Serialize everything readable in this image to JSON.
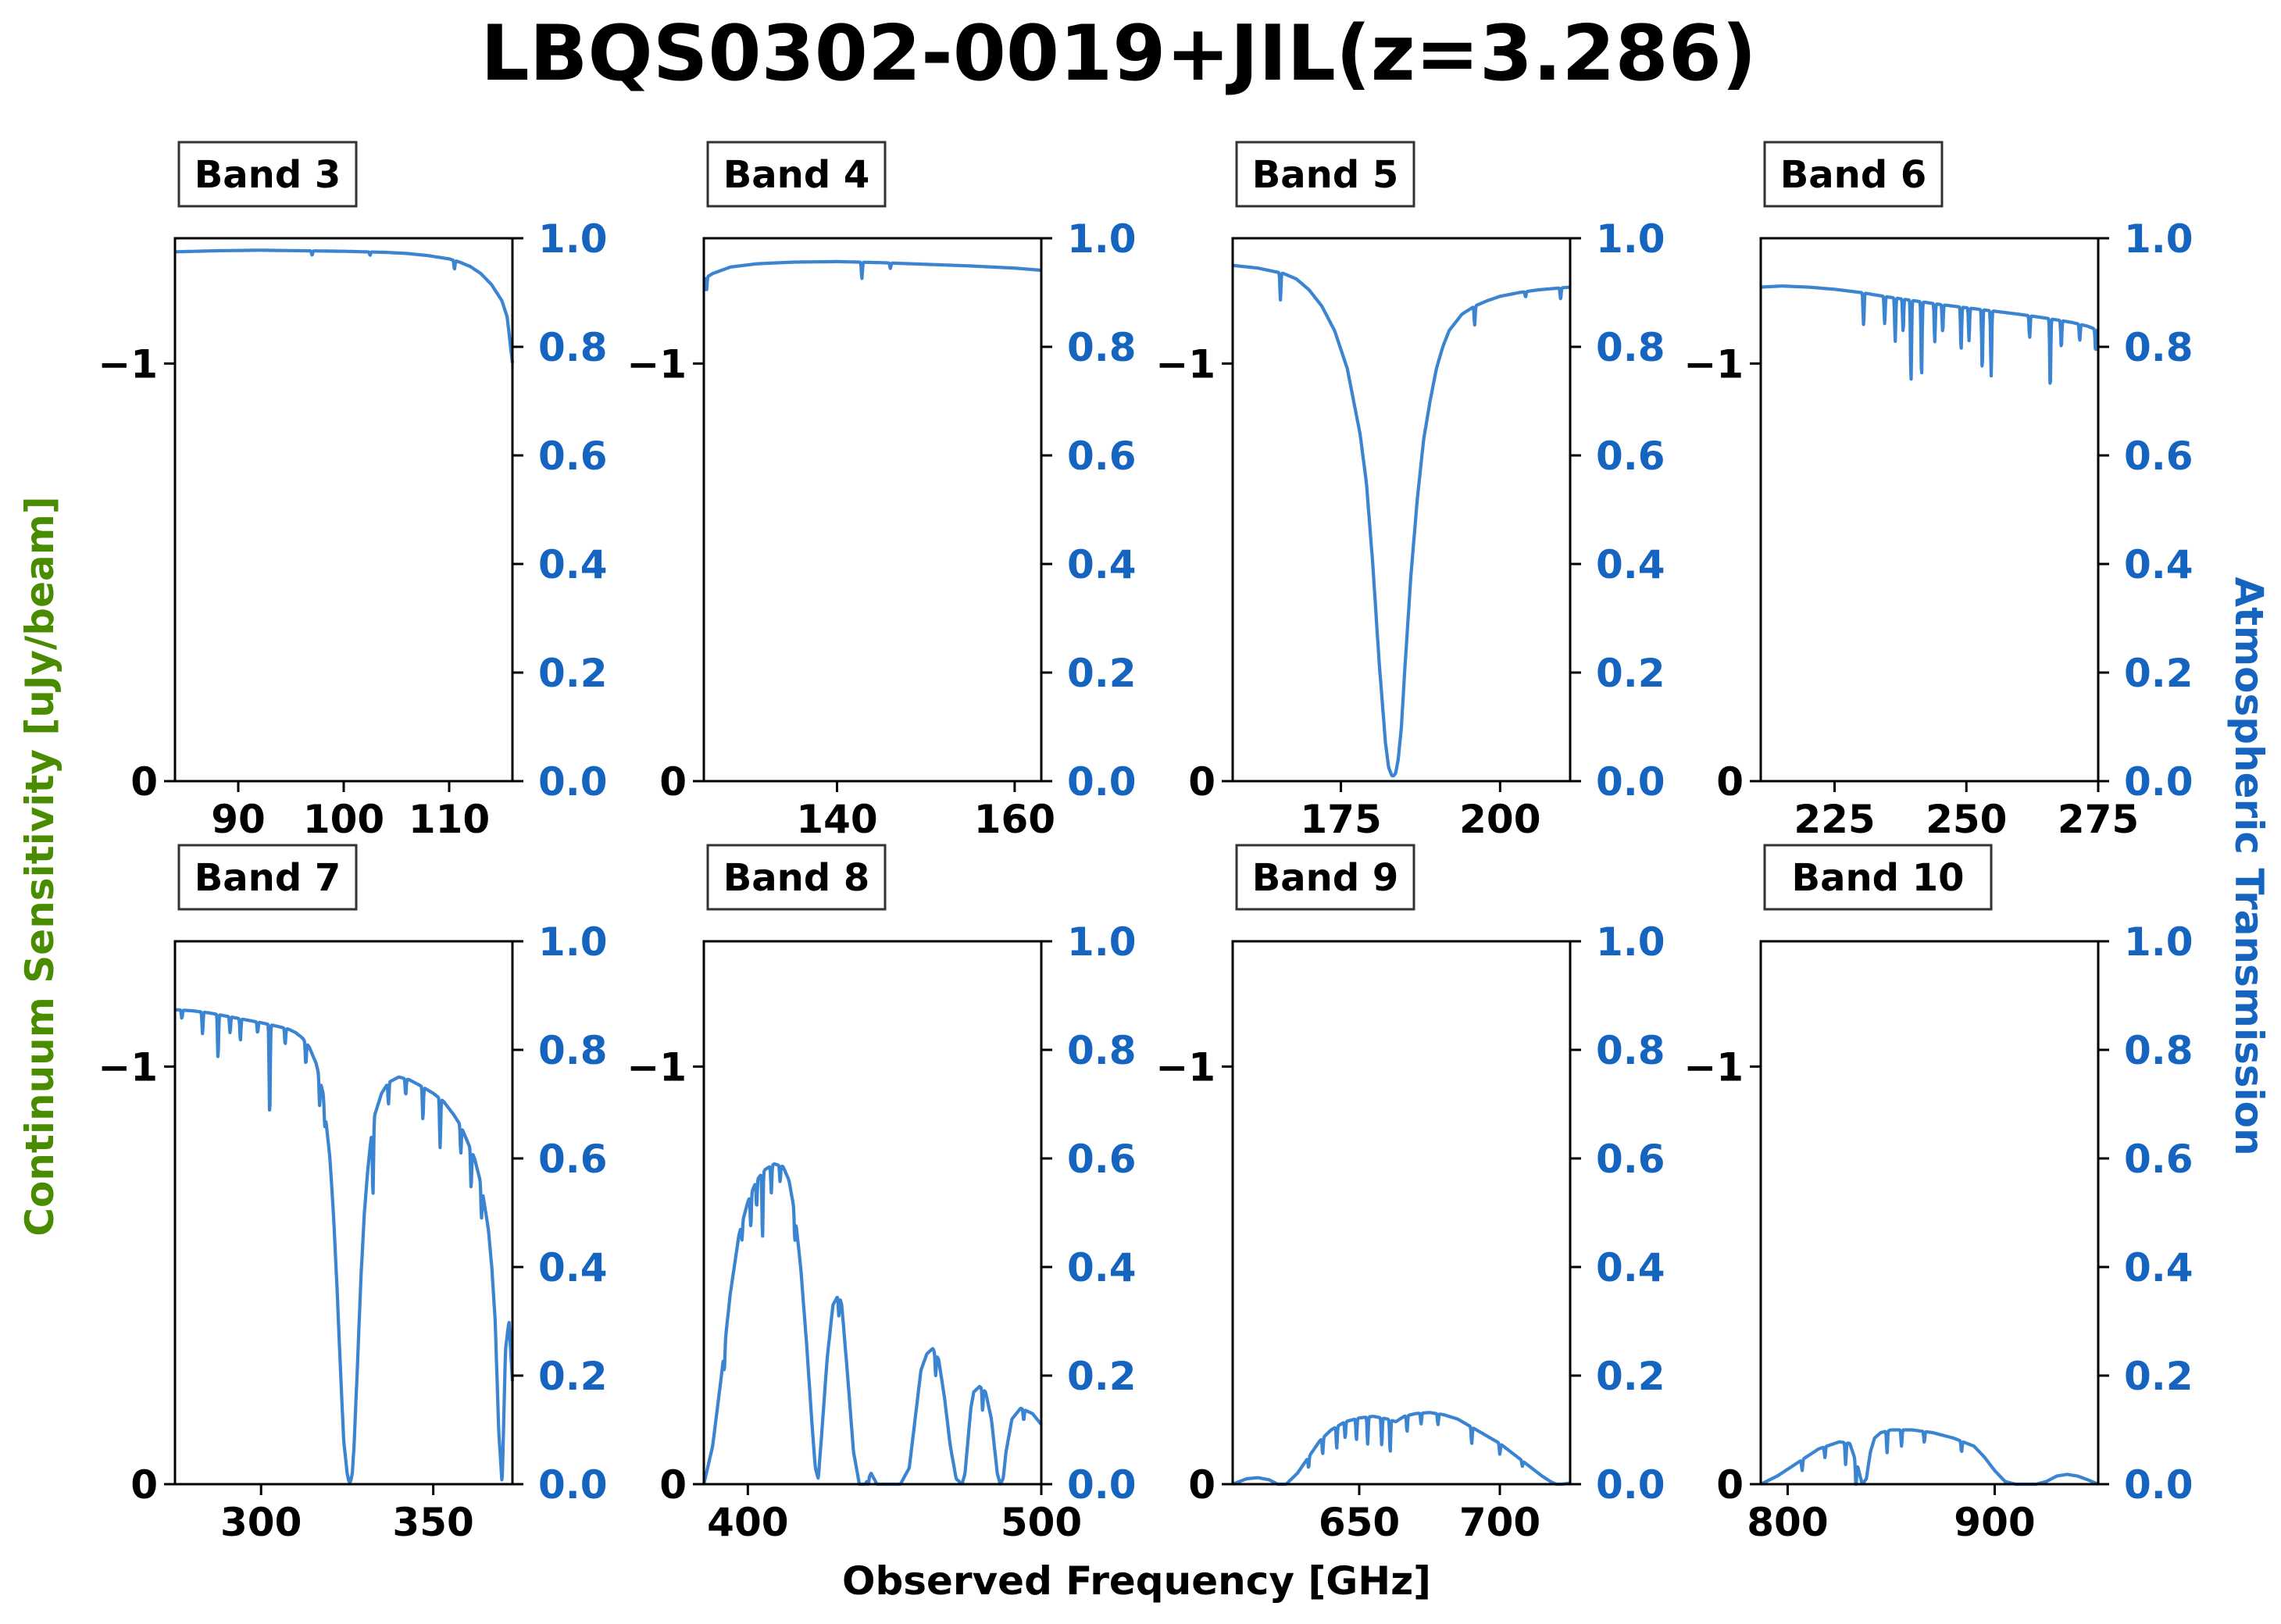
{
  "figure": {
    "title": "LBQS0302-0019+JIL(z=3.286)",
    "xlabel": "Observed Frequency [GHz]",
    "ylabel_left": "Continuum Sensitivity [uJy/beam]",
    "ylabel_right": "Atmospheric Transmission",
    "colors": {
      "transmission_line": "#3a84d2",
      "right_axis": "#1565c0",
      "left_label": "#4a8c00",
      "text": "#000000"
    }
  },
  "chart_data": [
    {
      "type": "line",
      "band": "Band 3",
      "xlim": [
        84,
        116
      ],
      "xticks": [
        90,
        100,
        110
      ],
      "ylim_left": [
        0,
        -1.3
      ],
      "yticks_left": [
        0,
        -1
      ],
      "ylim_right": [
        0,
        1
      ],
      "yticks_right": [
        0.0,
        0.2,
        0.4,
        0.6,
        0.8,
        1.0
      ],
      "series": [
        {
          "x": [
            84,
            88,
            92,
            96,
            100,
            104,
            106,
            108,
            110,
            111,
            112,
            113,
            114,
            115,
            115.5,
            116
          ],
          "y": [
            0.975,
            0.977,
            0.978,
            0.977,
            0.976,
            0.974,
            0.972,
            0.968,
            0.962,
            0.956,
            0.948,
            0.935,
            0.915,
            0.885,
            0.855,
            0.77
          ],
          "dips": [
            [
              97,
              0.008
            ],
            [
              102.5,
              0.006
            ],
            [
              110.5,
              0.016
            ]
          ]
        }
      ]
    },
    {
      "type": "line",
      "band": "Band 4",
      "xlim": [
        125,
        163
      ],
      "xticks": [
        140,
        160
      ],
      "ylim_left": [
        0,
        -1.3
      ],
      "yticks_left": [
        0,
        -1
      ],
      "ylim_right": [
        0,
        1
      ],
      "yticks_right": [
        0.0,
        0.2,
        0.4,
        0.6,
        0.8,
        1.0
      ],
      "series": [
        {
          "x": [
            125,
            126,
            128,
            131,
            135,
            140,
            145,
            150,
            155,
            160,
            163
          ],
          "y": [
            0.925,
            0.935,
            0.947,
            0.953,
            0.956,
            0.957,
            0.955,
            0.952,
            0.949,
            0.945,
            0.941
          ],
          "dips": [
            [
              125.3,
              0.025
            ],
            [
              142.8,
              0.03
            ],
            [
              146,
              0.01
            ]
          ]
        }
      ]
    },
    {
      "type": "line",
      "band": "Band 5",
      "xlim": [
        158,
        211
      ],
      "xticks": [
        175,
        200
      ],
      "ylim_left": [
        0,
        -1.3
      ],
      "yticks_left": [
        0,
        -1
      ],
      "ylim_right": [
        0,
        1
      ],
      "yticks_right": [
        0.0,
        0.2,
        0.4,
        0.6,
        0.8,
        1.0
      ],
      "series": [
        {
          "x": [
            158,
            162,
            166,
            168,
            170,
            172,
            174,
            176,
            178,
            179,
            180,
            181,
            182,
            182.5,
            183,
            183.3,
            183.6,
            184,
            184.5,
            185,
            186,
            187,
            188,
            189,
            190,
            191,
            192,
            194,
            196,
            198,
            200,
            203,
            206,
            209,
            211
          ],
          "y": [
            0.95,
            0.945,
            0.935,
            0.925,
            0.905,
            0.875,
            0.83,
            0.76,
            0.64,
            0.55,
            0.4,
            0.22,
            0.07,
            0.025,
            0.01,
            0.01,
            0.015,
            0.04,
            0.1,
            0.2,
            0.38,
            0.52,
            0.63,
            0.7,
            0.76,
            0.8,
            0.83,
            0.86,
            0.875,
            0.885,
            0.893,
            0.9,
            0.905,
            0.908,
            0.91
          ],
          "dips": [
            [
              165.5,
              0.05
            ],
            [
              196,
              0.035
            ],
            [
              204,
              0.01
            ],
            [
              209.5,
              0.02
            ]
          ]
        }
      ]
    },
    {
      "type": "line",
      "band": "Band 6",
      "xlim": [
        211,
        275
      ],
      "xticks": [
        225,
        250,
        275
      ],
      "ylim_left": [
        0,
        -1.3
      ],
      "yticks_left": [
        0,
        -1
      ],
      "ylim_right": [
        0,
        1
      ],
      "yticks_right": [
        0.0,
        0.2,
        0.4,
        0.6,
        0.8,
        1.0
      ],
      "series": [
        {
          "x": [
            211,
            215,
            220,
            225,
            230,
            235,
            240,
            245,
            250,
            255,
            260,
            265,
            270,
            273,
            275
          ],
          "y": [
            0.91,
            0.912,
            0.91,
            0.906,
            0.9,
            0.892,
            0.885,
            0.878,
            0.872,
            0.866,
            0.86,
            0.853,
            0.845,
            0.838,
            0.83
          ],
          "dips": [
            [
              230.5,
              0.06
            ],
            [
              234.5,
              0.05
            ],
            [
              236.5,
              0.08
            ],
            [
              238,
              0.06
            ],
            [
              239.5,
              0.15
            ],
            [
              241.5,
              0.14
            ],
            [
              244,
              0.07
            ],
            [
              245.5,
              0.05
            ],
            [
              249,
              0.08
            ],
            [
              250.5,
              0.06
            ],
            [
              253,
              0.11
            ],
            [
              254.7,
              0.12
            ],
            [
              262,
              0.04
            ],
            [
              265.9,
              0.13
            ],
            [
              268,
              0.05
            ],
            [
              271.5,
              0.03
            ],
            [
              274.5,
              0.04
            ]
          ]
        }
      ]
    },
    {
      "type": "line",
      "band": "Band 7",
      "xlim": [
        275,
        373
      ],
      "xticks": [
        300,
        350
      ],
      "ylim_left": [
        0,
        -1.3
      ],
      "yticks_left": [
        0,
        -1
      ],
      "ylim_right": [
        0,
        1
      ],
      "yticks_right": [
        0.0,
        0.2,
        0.4,
        0.6,
        0.8,
        1.0
      ],
      "series": [
        {
          "x": [
            275,
            280,
            285,
            290,
            295,
            300,
            305,
            308,
            310,
            312,
            314,
            316,
            318,
            320,
            321,
            322,
            323,
            324,
            325,
            325.5,
            326,
            326.5,
            327,
            328,
            329,
            330,
            331,
            332,
            333,
            335,
            337,
            340,
            343,
            346,
            350,
            353,
            356,
            358,
            360,
            362,
            364,
            366,
            367,
            368,
            369,
            370,
            371,
            372,
            373
          ],
          "y": [
            0.874,
            0.872,
            0.868,
            0.862,
            0.856,
            0.85,
            0.843,
            0.838,
            0.832,
            0.822,
            0.805,
            0.775,
            0.72,
            0.6,
            0.5,
            0.37,
            0.22,
            0.08,
            0.02,
            0.005,
            0.005,
            0.02,
            0.07,
            0.22,
            0.38,
            0.5,
            0.58,
            0.64,
            0.68,
            0.72,
            0.74,
            0.75,
            0.745,
            0.735,
            0.72,
            0.705,
            0.68,
            0.66,
            0.63,
            0.6,
            0.55,
            0.47,
            0.4,
            0.3,
            0.1,
            0.0,
            0.25,
            0.3,
            0.19
          ],
          "dips": [
            [
              277,
              0.015
            ],
            [
              283,
              0.04
            ],
            [
              287.5,
              0.08
            ],
            [
              291,
              0.03
            ],
            [
              294,
              0.04
            ],
            [
              299,
              0.02
            ],
            [
              302.5,
              0.17
            ],
            [
              307,
              0.03
            ],
            [
              313,
              0.04
            ],
            [
              317,
              0.05
            ],
            [
              318.5,
              0.03
            ],
            [
              332.5,
              0.13
            ],
            [
              337,
              0.04
            ],
            [
              342,
              0.03
            ],
            [
              347,
              0.06
            ],
            [
              352,
              0.09
            ],
            [
              358,
              0.05
            ],
            [
              361,
              0.07
            ],
            [
              364,
              0.06
            ]
          ]
        }
      ]
    },
    {
      "type": "line",
      "band": "Band 8",
      "xlim": [
        385,
        500
      ],
      "xticks": [
        400,
        500
      ],
      "ylim_left": [
        0,
        -1.3
      ],
      "yticks_left": [
        0,
        -1
      ],
      "ylim_right": [
        0,
        1
      ],
      "yticks_right": [
        0.0,
        0.2,
        0.4,
        0.6,
        0.8,
        1.0
      ],
      "series": [
        {
          "x": [
            385,
            388,
            391,
            394,
            397,
            400,
            403,
            406,
            409,
            412,
            414,
            416,
            418,
            420,
            422,
            423,
            424,
            425,
            427,
            429,
            431,
            432,
            434,
            436,
            438,
            440,
            442,
            444,
            448,
            452,
            455,
            457,
            459,
            461,
            463,
            465,
            467,
            469,
            471,
            473,
            474,
            475,
            476,
            477,
            479,
            481,
            483,
            485,
            486,
            487,
            488,
            490,
            493,
            497,
            500
          ],
          "y": [
            0.0,
            0.07,
            0.2,
            0.35,
            0.46,
            0.52,
            0.56,
            0.58,
            0.59,
            0.585,
            0.56,
            0.5,
            0.4,
            0.26,
            0.1,
            0.03,
            0.01,
            0.08,
            0.23,
            0.33,
            0.35,
            0.33,
            0.2,
            0.06,
            0.0,
            0.0,
            0.02,
            0.0,
            0.0,
            0.0,
            0.03,
            0.12,
            0.21,
            0.24,
            0.25,
            0.23,
            0.16,
            0.07,
            0.01,
            0.0,
            0.02,
            0.08,
            0.14,
            0.17,
            0.18,
            0.17,
            0.12,
            0.02,
            0.0,
            0.01,
            0.06,
            0.12,
            0.14,
            0.13,
            0.11
          ],
          "dips": [
            [
              392,
              0.04
            ],
            [
              398,
              0.03
            ],
            [
              401,
              0.06
            ],
            [
              403,
              0.05
            ],
            [
              405,
              0.12
            ],
            [
              408,
              0.05
            ],
            [
              411,
              0.03
            ],
            [
              416,
              0.05
            ],
            [
              431,
              0.04
            ],
            [
              441,
              0.015
            ],
            [
              464,
              0.04
            ],
            [
              480,
              0.04
            ],
            [
              494,
              0.02
            ]
          ]
        }
      ]
    },
    {
      "type": "line",
      "band": "Band 9",
      "xlim": [
        605,
        725
      ],
      "xticks": [
        650,
        700
      ],
      "ylim_left": [
        0,
        -1.3
      ],
      "yticks_left": [
        0,
        -1
      ],
      "ylim_right": [
        0,
        1
      ],
      "yticks_right": [
        0.0,
        0.2,
        0.4,
        0.6,
        0.8,
        1.0
      ],
      "series": [
        {
          "x": [
            605,
            610,
            614,
            618,
            621,
            624,
            628,
            632,
            636,
            640,
            645,
            650,
            655,
            660,
            663,
            666,
            670,
            675,
            680,
            685,
            690,
            695,
            700,
            705,
            710,
            715,
            718,
            720,
            722,
            725
          ],
          "y": [
            0.0,
            0.01,
            0.012,
            0.008,
            0.0,
            0.0,
            0.02,
            0.05,
            0.08,
            0.1,
            0.115,
            0.122,
            0.125,
            0.12,
            0.115,
            0.125,
            0.13,
            0.132,
            0.128,
            0.12,
            0.105,
            0.09,
            0.075,
            0.055,
            0.035,
            0.015,
            0.005,
            0.0,
            0.0,
            0.002
          ],
          "dips": [
            [
              632,
              0.02
            ],
            [
              637,
              0.03
            ],
            [
              642,
              0.04
            ],
            [
              645,
              0.03
            ],
            [
              649,
              0.04
            ],
            [
              653,
              0.05
            ],
            [
              658,
              0.05
            ],
            [
              661,
              0.06
            ],
            [
              667,
              0.03
            ],
            [
              672,
              0.02
            ],
            [
              678,
              0.02
            ],
            [
              690,
              0.03
            ],
            [
              700,
              0.02
            ],
            [
              708,
              0.01
            ]
          ]
        }
      ]
    },
    {
      "type": "line",
      "band": "Band 10",
      "xlim": [
        787,
        950
      ],
      "xticks": [
        800,
        900
      ],
      "ylim_left": [
        0,
        -1.3
      ],
      "yticks_left": [
        0,
        -1
      ],
      "ylim_right": [
        0,
        1
      ],
      "yticks_right": [
        0.0,
        0.2,
        0.4,
        0.6,
        0.8,
        1.0
      ],
      "series": [
        {
          "x": [
            787,
            795,
            805,
            815,
            825,
            830,
            834,
            836,
            838,
            840,
            842,
            845,
            850,
            860,
            870,
            880,
            890,
            895,
            900,
            905,
            910,
            915,
            920,
            925,
            930,
            935,
            940,
            945,
            950
          ],
          "y": [
            0.0,
            0.015,
            0.04,
            0.065,
            0.078,
            0.075,
            0.03,
            0.0,
            0.01,
            0.06,
            0.085,
            0.095,
            0.1,
            0.1,
            0.095,
            0.085,
            0.07,
            0.05,
            0.025,
            0.005,
            0.0,
            0.0,
            0.0,
            0.005,
            0.015,
            0.018,
            0.015,
            0.008,
            0.0
          ],
          "dips": [
            [
              807,
              0.02
            ],
            [
              818,
              0.02
            ],
            [
              828,
              0.04
            ],
            [
              833,
              0.05
            ],
            [
              848,
              0.04
            ],
            [
              855,
              0.03
            ],
            [
              866,
              0.02
            ],
            [
              884,
              0.02
            ]
          ]
        }
      ]
    }
  ]
}
